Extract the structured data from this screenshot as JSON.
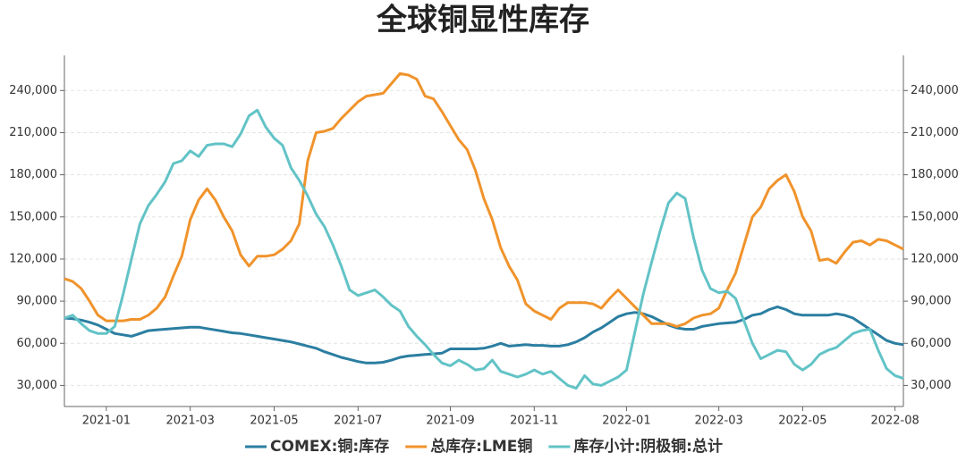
{
  "chart_data": {
    "type": "line",
    "title": "全球铜显性库存",
    "categories": [
      null,
      null,
      null,
      null,
      null,
      "2021-01",
      null,
      null,
      null,
      null,
      null,
      null,
      null,
      null,
      null,
      "2021-03",
      null,
      null,
      null,
      null,
      null,
      null,
      null,
      null,
      null,
      "2021-05",
      null,
      null,
      null,
      null,
      null,
      null,
      null,
      null,
      null,
      "2021-07",
      null,
      null,
      null,
      null,
      null,
      null,
      null,
      null,
      null,
      null,
      "2021-09",
      null,
      null,
      null,
      null,
      null,
      null,
      null,
      null,
      null,
      "2021-11",
      null,
      null,
      null,
      null,
      null,
      null,
      null,
      null,
      null,
      null,
      "2022-01",
      null,
      null,
      null,
      null,
      null,
      null,
      null,
      null,
      null,
      null,
      "2022-03",
      null,
      null,
      null,
      null,
      null,
      null,
      null,
      null,
      null,
      "2022-05",
      null,
      null,
      null,
      null,
      null,
      null,
      null,
      null,
      null,
      null,
      "2022-08",
      null
    ],
    "series": [
      {
        "name": "COMEX:铜:库存",
        "color": "#2b7ea1",
        "values": [
          78000,
          77500,
          76500,
          75000,
          73000,
          70000,
          67000,
          66000,
          65000,
          67000,
          69000,
          69500,
          70000,
          70500,
          71000,
          71500,
          71500,
          70500,
          69500,
          68500,
          67500,
          67000,
          66000,
          65000,
          64000,
          63000,
          62000,
          61000,
          59500,
          58000,
          56500,
          54000,
          52000,
          50000,
          48500,
          47000,
          46000,
          46000,
          46500,
          48000,
          50000,
          51000,
          51500,
          52000,
          52500,
          53000,
          56000,
          56000,
          56000,
          56000,
          56500,
          58000,
          60000,
          58000,
          58500,
          59000,
          58500,
          58500,
          58000,
          58000,
          59000,
          61000,
          64000,
          68000,
          71000,
          75000,
          79000,
          81000,
          82000,
          81000,
          79000,
          76000,
          73000,
          71000,
          70000,
          70000,
          72000,
          73000,
          74000,
          74500,
          75000,
          77000,
          80000,
          81000,
          84000,
          86000,
          84000,
          81000,
          80000,
          80000,
          80000,
          80000,
          81000,
          80000,
          78000,
          74000,
          70000,
          66000,
          62000,
          60000,
          59000
        ]
      },
      {
        "name": "总库存:LME铜",
        "color": "#f0932b",
        "values": [
          106000,
          104000,
          99000,
          90000,
          80000,
          76000,
          76000,
          76000,
          77000,
          77000,
          80000,
          85000,
          93000,
          108000,
          122000,
          148000,
          162000,
          170000,
          162000,
          150000,
          140000,
          123000,
          115000,
          122000,
          122000,
          123000,
          127000,
          133000,
          145000,
          190000,
          210000,
          211000,
          213000,
          220000,
          226000,
          232000,
          236000,
          237000,
          238000,
          245000,
          252000,
          251000,
          248000,
          236000,
          234000,
          225000,
          215000,
          205000,
          198000,
          183000,
          163000,
          148000,
          128000,
          115000,
          105000,
          88000,
          83000,
          80000,
          77000,
          85000,
          89000,
          89000,
          89000,
          88000,
          85000,
          92000,
          98000,
          92000,
          86000,
          80000,
          74000,
          74000,
          74000,
          72000,
          74000,
          78000,
          80000,
          81000,
          85000,
          98000,
          110000,
          130000,
          150000,
          157000,
          170000,
          176000,
          180000,
          168000,
          150000,
          140000,
          119000,
          120000,
          117000,
          125000,
          132000,
          133000,
          130000,
          134000,
          133000,
          130000,
          127000
        ]
      },
      {
        "name": "库存小计:阴极铜:总计",
        "color": "#62c3c6",
        "values": [
          78000,
          80000,
          74000,
          69000,
          67000,
          67000,
          72000,
          95000,
          120000,
          145000,
          158000,
          166000,
          175000,
          188000,
          190000,
          197000,
          193000,
          201000,
          202000,
          202000,
          200000,
          209000,
          222000,
          226000,
          214000,
          206000,
          201000,
          185000,
          176000,
          165000,
          152000,
          143000,
          130000,
          115000,
          98000,
          94000,
          96000,
          98000,
          93000,
          87000,
          83000,
          72000,
          65000,
          59000,
          52000,
          46000,
          44000,
          48000,
          45000,
          41000,
          42000,
          48000,
          40000,
          38000,
          36000,
          38000,
          41000,
          38000,
          40000,
          35000,
          30000,
          28000,
          37000,
          31000,
          30000,
          33000,
          36000,
          41000,
          68000,
          95000,
          118000,
          140000,
          160000,
          167000,
          163000,
          135000,
          112000,
          99000,
          96000,
          97000,
          92000,
          76000,
          60000,
          49000,
          52000,
          55000,
          54000,
          45000,
          41000,
          45000,
          52000,
          55000,
          57000,
          62000,
          67000,
          69000,
          70000,
          55000,
          42000,
          37000,
          35000
        ]
      }
    ],
    "ylim": [
      15000,
      265000
    ],
    "yticks": [
      {
        "value": 30000,
        "label": "30,000"
      },
      {
        "value": 60000,
        "label": "60,000"
      },
      {
        "value": 90000,
        "label": "90,000"
      },
      {
        "value": 120000,
        "label": "120,000"
      },
      {
        "value": 150000,
        "label": "150,000"
      },
      {
        "value": 180000,
        "label": "180,000"
      },
      {
        "value": 210000,
        "label": "210,000"
      },
      {
        "value": 240000,
        "label": "240,000"
      }
    ],
    "y2lim": [
      15000,
      265000
    ],
    "y2ticks": [
      {
        "value": 30000,
        "label": "30,000"
      },
      {
        "value": 60000,
        "label": "60,000"
      },
      {
        "value": 90000,
        "label": "90,000"
      },
      {
        "value": 120000,
        "label": "120,000"
      },
      {
        "value": 150000,
        "label": "150,000"
      },
      {
        "value": 180000,
        "label": "180,000"
      },
      {
        "value": 210000,
        "label": "210,000"
      },
      {
        "value": 240000,
        "label": "240,000"
      }
    ],
    "grid": true,
    "legend": "bottom"
  }
}
